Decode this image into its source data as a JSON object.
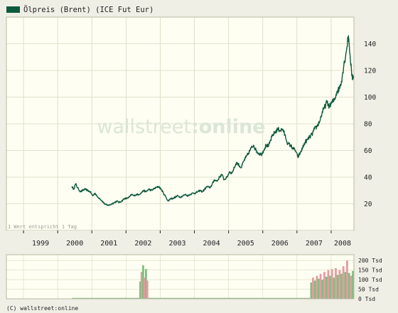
{
  "colors": {
    "page_bg": "#f0efe6",
    "plot_bg": "#fefef2",
    "grid": "#d9d9c4",
    "frame": "#b9b9a4",
    "price_line": "#0e5a3c",
    "legend_swatch": "#0e5a3c",
    "volume_green": "#7fbf7f",
    "volume_red": "#e79aa0",
    "watermark_text": "#dbe6d9",
    "text": "#222222"
  },
  "legend": {
    "label": "Ölpreis (Brent) (ICE Fut Eur)"
  },
  "watermark": {
    "part1": "wallstreet",
    "part2": ":online"
  },
  "note": "1 Wert entspricht 1 Tag",
  "copyright": "(C) wallstreet:online",
  "chart_data": [
    {
      "type": "line",
      "grid": true,
      "legend_position": "top-left",
      "series": [
        {
          "name": "Ölpreis (Brent) (ICE Fut Eur)",
          "points": [
            [
              "2000-06-01",
              33
            ],
            [
              "2000-06-20",
              31
            ],
            [
              "2000-07-10",
              35
            ],
            [
              "2000-08-01",
              32
            ],
            [
              "2000-09-01",
              29
            ],
            [
              "2000-09-25",
              30
            ],
            [
              "2000-10-20",
              31
            ],
            [
              "2000-11-15",
              30
            ],
            [
              "2000-12-15",
              29
            ],
            [
              "2001-01-10",
              26
            ],
            [
              "2001-02-05",
              28
            ],
            [
              "2001-03-01",
              25
            ],
            [
              "2001-03-25",
              24
            ],
            [
              "2001-04-20",
              22
            ],
            [
              "2001-05-15",
              20
            ],
            [
              "2001-06-10",
              19
            ],
            [
              "2001-07-05",
              19
            ],
            [
              "2001-08-01",
              20
            ],
            [
              "2001-09-01",
              21
            ],
            [
              "2001-09-25",
              22
            ],
            [
              "2001-10-20",
              21
            ],
            [
              "2001-11-15",
              22
            ],
            [
              "2001-12-15",
              24
            ],
            [
              "2002-01-10",
              24
            ],
            [
              "2002-02-05",
              25
            ],
            [
              "2002-03-01",
              27
            ],
            [
              "2002-03-25",
              26
            ],
            [
              "2002-04-20",
              27
            ],
            [
              "2002-05-15",
              27
            ],
            [
              "2002-06-10",
              28
            ],
            [
              "2002-07-05",
              30
            ],
            [
              "2002-08-01",
              29
            ],
            [
              "2002-09-01",
              31
            ],
            [
              "2002-09-25",
              30
            ],
            [
              "2002-10-20",
              31
            ],
            [
              "2002-11-15",
              32
            ],
            [
              "2002-12-15",
              33
            ],
            [
              "2003-01-10",
              31
            ],
            [
              "2003-02-05",
              28
            ],
            [
              "2003-03-01",
              25
            ],
            [
              "2003-03-25",
              22
            ],
            [
              "2003-04-20",
              24
            ],
            [
              "2003-05-15",
              24
            ],
            [
              "2003-06-10",
              25
            ],
            [
              "2003-07-05",
              26
            ],
            [
              "2003-08-01",
              25
            ],
            [
              "2003-09-01",
              26
            ],
            [
              "2003-09-25",
              27
            ],
            [
              "2003-10-20",
              26
            ],
            [
              "2003-11-15",
              27
            ],
            [
              "2003-12-15",
              28
            ],
            [
              "2004-01-10",
              28
            ],
            [
              "2004-02-05",
              29
            ],
            [
              "2004-03-01",
              30
            ],
            [
              "2004-03-25",
              29
            ],
            [
              "2004-04-20",
              31
            ],
            [
              "2004-05-15",
              33
            ],
            [
              "2004-06-10",
              32
            ],
            [
              "2004-07-05",
              34
            ],
            [
              "2004-08-01",
              38
            ],
            [
              "2004-09-01",
              37
            ],
            [
              "2004-09-25",
              40
            ],
            [
              "2004-10-20",
              42
            ],
            [
              "2004-11-15",
              38
            ],
            [
              "2004-12-15",
              40
            ],
            [
              "2005-01-10",
              44
            ],
            [
              "2005-02-05",
              43
            ],
            [
              "2005-03-01",
              47
            ],
            [
              "2005-03-25",
              51
            ],
            [
              "2005-04-20",
              49
            ],
            [
              "2005-05-15",
              47
            ],
            [
              "2005-06-10",
              52
            ],
            [
              "2005-07-05",
              55
            ],
            [
              "2005-08-01",
              58
            ],
            [
              "2005-09-01",
              62
            ],
            [
              "2005-09-25",
              64
            ],
            [
              "2005-10-20",
              60
            ],
            [
              "2005-11-15",
              58
            ],
            [
              "2005-12-15",
              57
            ],
            [
              "2006-01-10",
              60
            ],
            [
              "2006-02-05",
              64
            ],
            [
              "2006-03-01",
              63
            ],
            [
              "2006-03-25",
              68
            ],
            [
              "2006-04-20",
              72
            ],
            [
              "2006-05-15",
              74
            ],
            [
              "2006-06-10",
              76
            ],
            [
              "2006-07-05",
              75
            ],
            [
              "2006-08-01",
              76
            ],
            [
              "2006-09-01",
              70
            ],
            [
              "2006-09-25",
              65
            ],
            [
              "2006-10-20",
              64
            ],
            [
              "2006-11-15",
              62
            ],
            [
              "2006-12-15",
              60
            ],
            [
              "2007-01-10",
              55
            ],
            [
              "2007-02-05",
              58
            ],
            [
              "2007-03-01",
              62
            ],
            [
              "2007-03-25",
              66
            ],
            [
              "2007-04-20",
              68
            ],
            [
              "2007-05-15",
              70
            ],
            [
              "2007-06-10",
              72
            ],
            [
              "2007-07-05",
              76
            ],
            [
              "2007-08-01",
              78
            ],
            [
              "2007-09-01",
              82
            ],
            [
              "2007-09-25",
              88
            ],
            [
              "2007-10-20",
              92
            ],
            [
              "2007-11-15",
              96
            ],
            [
              "2007-12-15",
              93
            ],
            [
              "2008-01-10",
              96
            ],
            [
              "2008-02-05",
              98
            ],
            [
              "2008-03-01",
              104
            ],
            [
              "2008-03-25",
              106
            ],
            [
              "2008-04-20",
              112
            ],
            [
              "2008-05-15",
              124
            ],
            [
              "2008-06-10",
              134
            ],
            [
              "2008-07-03",
              146
            ],
            [
              "2008-07-20",
              132
            ],
            [
              "2008-08-05",
              120
            ],
            [
              "2008-08-15",
              113
            ],
            [
              "2008-08-25",
              116
            ]
          ]
        }
      ],
      "x_axis": {
        "range": [
          "1998-07-01",
          "2008-09-01"
        ],
        "tick_labels": [
          "1999",
          "2000",
          "2001",
          "2002",
          "2003",
          "2004",
          "2005",
          "2006",
          "2007",
          "2008"
        ]
      },
      "y_axis": {
        "range": [
          0,
          160
        ],
        "tick_values": [
          20,
          40,
          60,
          80,
          100,
          120,
          140
        ],
        "tick_labels": [
          "20",
          "40",
          "60",
          "80",
          "100",
          "120",
          "140"
        ]
      }
    },
    {
      "type": "bar",
      "grid": true,
      "series": [
        {
          "name": "",
          "points": [
            [
              "2002-06-01",
              90
            ],
            [
              "2002-06-15",
              140
            ],
            [
              "2002-07-01",
              175
            ],
            [
              "2002-07-15",
              110
            ],
            [
              "2002-08-01",
              155
            ],
            [
              "2002-08-15",
              95
            ],
            [
              "2007-06-01",
              85
            ],
            [
              "2007-06-20",
              110
            ],
            [
              "2007-07-10",
              95
            ],
            [
              "2007-08-01",
              120
            ],
            [
              "2007-08-20",
              105
            ],
            [
              "2007-09-10",
              130
            ],
            [
              "2007-10-01",
              100
            ],
            [
              "2007-10-20",
              140
            ],
            [
              "2007-11-10",
              115
            ],
            [
              "2007-12-01",
              150
            ],
            [
              "2007-12-20",
              120
            ],
            [
              "2008-01-10",
              155
            ],
            [
              "2008-02-01",
              110
            ],
            [
              "2008-02-20",
              160
            ],
            [
              "2008-03-10",
              125
            ],
            [
              "2008-04-01",
              150
            ],
            [
              "2008-04-20",
              130
            ],
            [
              "2008-05-10",
              170
            ],
            [
              "2008-06-01",
              140
            ],
            [
              "2008-06-20",
              200
            ],
            [
              "2008-07-10",
              135
            ],
            [
              "2008-08-01",
              120
            ],
            [
              "2008-08-20",
              145
            ]
          ]
        }
      ],
      "x_axis": {
        "range": [
          "1998-07-01",
          "2008-09-01"
        ]
      },
      "y_axis": {
        "range": [
          0,
          230
        ],
        "tick_values": [
          0,
          50,
          100,
          150,
          200
        ],
        "tick_labels": [
          "0 Tsd",
          "50 Tsd",
          "100 Tsd",
          "150 Tsd",
          "200 Tsd"
        ]
      }
    }
  ]
}
